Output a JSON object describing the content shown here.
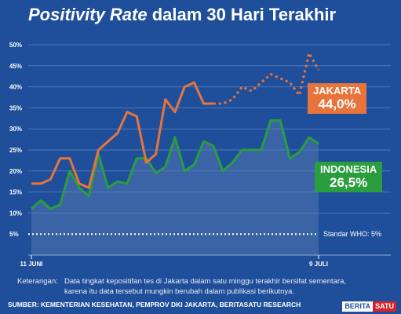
{
  "header": {
    "title_emph": "Positivity Rate",
    "title_rest": " dalam 30 Hari Terakhir"
  },
  "chart_data": {
    "type": "line",
    "x_start_label": "11 JUNI",
    "x_end_label": "9 JULI",
    "ylim": [
      0,
      50
    ],
    "yticks": [
      "5%",
      "10%",
      "15%",
      "20%",
      "25%",
      "30%",
      "35%",
      "40%",
      "45%",
      "50%"
    ],
    "reference": {
      "value": 5,
      "label": "Standar WHO: 5%"
    },
    "series": [
      {
        "name": "JAKARTA",
        "final_label": "44,0%",
        "color": "#e8743b",
        "values": [
          17,
          17,
          18,
          23,
          23,
          17,
          16,
          25,
          27,
          29,
          34,
          33,
          22,
          24,
          37,
          34,
          40,
          41,
          36,
          36,
          36,
          37,
          40,
          39,
          41,
          43,
          42,
          41,
          38,
          48,
          44
        ],
        "solid_until_index": 19
      },
      {
        "name": "INDONESIA",
        "final_label": "26,5%",
        "color": "#2a9d3f",
        "values": [
          11,
          13,
          11,
          12,
          20,
          16,
          14,
          24,
          16,
          17.5,
          17,
          23,
          23,
          19.5,
          21,
          28,
          20,
          21.5,
          27,
          26,
          20,
          22,
          25,
          25,
          25,
          32,
          32,
          23,
          24.5,
          28,
          26.5
        ]
      }
    ],
    "grid": true
  },
  "footer": {
    "note_label": "Keterangan:",
    "note_line1": "Data tingkat kepositifan tes di Jakarta dalam satu minggu terakhir bersifat sementara,",
    "note_line2": "karena itu data tersebut mungkin berubah dalam publikasi berikutnya.",
    "source": "SUMBER: KEMENTERIAN KESEHATAN, PEMPROV DKI JAKARTA, BERITASATU RESEARCH",
    "logo_a": "BERITA",
    "logo_b": "SATU"
  }
}
